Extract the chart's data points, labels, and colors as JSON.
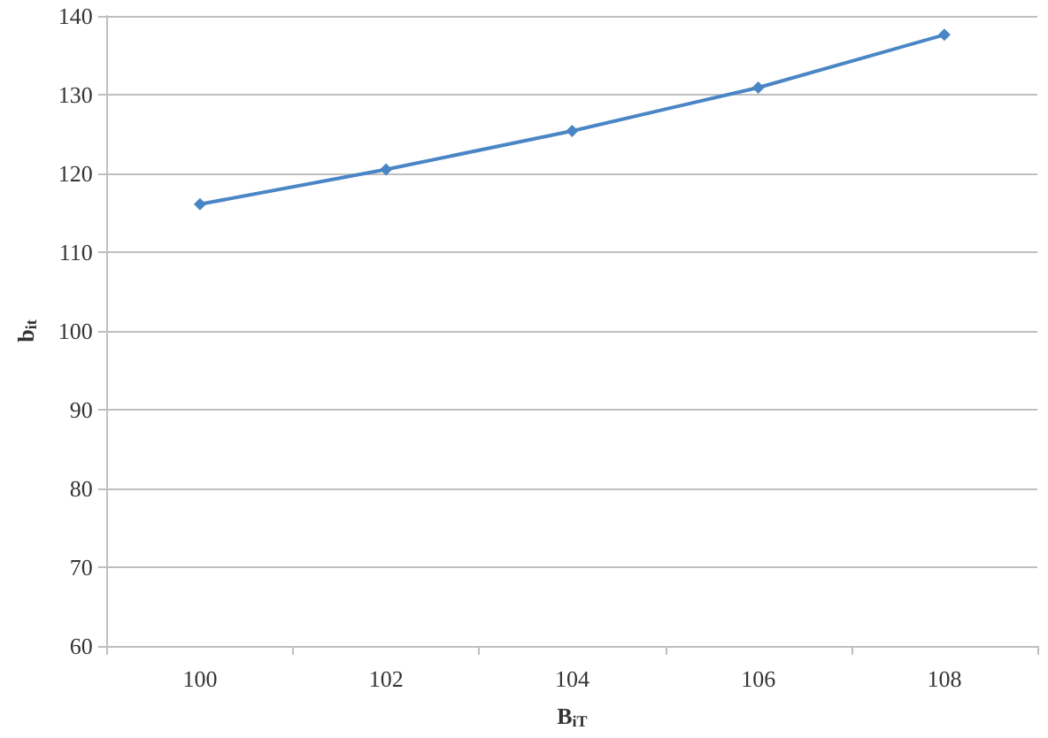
{
  "chart_data": {
    "type": "line",
    "xlabel": "B$_{iT}$",
    "ylabel": "b$_{it}$",
    "categories": [
      "100",
      "102",
      "104",
      "106",
      "108"
    ],
    "series": [
      {
        "color": "#4a86c5",
        "values": [
          116.1,
          120.5,
          125.4,
          130.9,
          137.6
        ]
      }
    ],
    "ylim": [
      60,
      140
    ],
    "yticks": [
      60,
      70,
      80,
      90,
      100,
      110,
      120,
      130,
      140
    ],
    "grid": "y",
    "marker": "diamond",
    "line_style": "solid"
  }
}
